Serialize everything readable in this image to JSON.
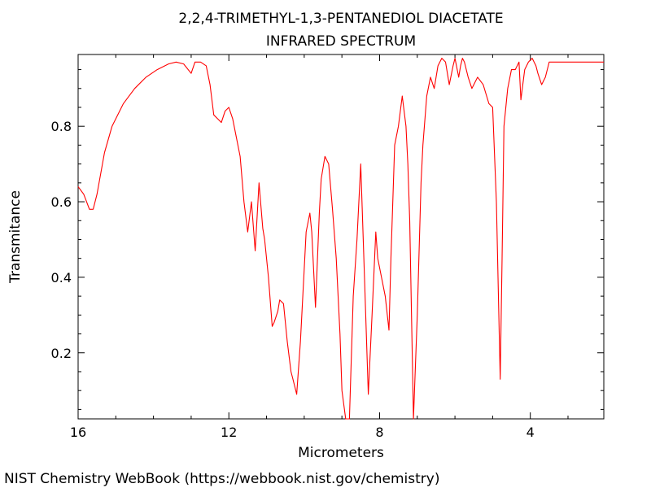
{
  "chart_data": {
    "type": "line",
    "title": "2,2,4-TRIMETHYL-1,3-PENTANEDIOL DIACETATE",
    "subtitle": "INFRARED SPECTRUM",
    "xlabel": "Micrometers",
    "ylabel": "Transmitance",
    "xlim": [
      16,
      2.05
    ],
    "ylim": [
      0.025,
      0.99
    ],
    "x_ticks": [
      16,
      12,
      8,
      4
    ],
    "x_tick_labels": [
      "16",
      "12",
      "8",
      "4"
    ],
    "y_ticks": [
      0.2,
      0.4,
      0.6,
      0.8
    ],
    "y_tick_labels": [
      "0.2",
      "0.4",
      "0.6",
      "0.8"
    ],
    "grid": false,
    "line_color": "#ff0000",
    "series": [
      {
        "x": [
          16.0,
          15.85,
          15.7,
          15.6,
          15.5,
          15.3,
          15.1,
          14.8,
          14.5,
          14.2,
          13.9,
          13.6,
          13.4,
          13.2,
          13.0,
          12.9,
          12.75,
          12.6,
          12.5,
          12.4,
          12.3,
          12.2,
          12.1,
          12.0,
          11.9,
          11.8,
          11.7,
          11.6,
          11.5,
          11.4,
          11.3,
          11.2,
          11.1,
          11.05,
          10.95,
          10.85,
          10.8,
          10.7,
          10.65,
          10.55,
          10.45,
          10.35,
          10.3,
          10.2,
          10.1,
          10.0,
          9.95,
          9.85,
          9.8,
          9.7,
          9.6,
          9.55,
          9.45,
          9.35,
          9.25,
          9.15,
          9.05,
          9.0,
          8.9,
          8.8,
          8.7,
          8.6,
          8.5,
          8.4,
          8.3,
          8.2,
          8.1,
          8.05,
          7.95,
          7.85,
          7.75,
          7.7,
          7.6,
          7.5,
          7.4,
          7.3,
          7.25,
          7.2,
          7.1,
          7.0,
          6.9,
          6.85,
          6.75,
          6.65,
          6.55,
          6.45,
          6.35,
          6.25,
          6.15,
          6.05,
          6.0,
          5.9,
          5.85,
          5.8,
          5.75,
          5.65,
          5.55,
          5.4,
          5.25,
          5.1,
          5.0,
          4.9,
          4.8,
          4.75,
          4.7,
          4.6,
          4.5,
          4.4,
          4.3,
          4.25,
          4.15,
          4.05,
          3.95,
          3.85,
          3.8,
          3.7,
          3.6,
          3.5,
          3.45,
          3.4,
          3.35,
          3.3,
          3.25,
          3.2,
          3.15,
          3.1,
          3.05,
          3.0,
          2.95,
          2.9,
          2.8,
          2.7,
          2.6,
          2.5,
          2.4,
          2.3,
          2.25,
          2.2,
          2.15,
          2.1,
          2.05
        ],
        "y": [
          0.64,
          0.62,
          0.58,
          0.58,
          0.62,
          0.73,
          0.8,
          0.86,
          0.9,
          0.93,
          0.95,
          0.965,
          0.97,
          0.965,
          0.94,
          0.97,
          0.97,
          0.96,
          0.91,
          0.83,
          0.82,
          0.81,
          0.84,
          0.85,
          0.82,
          0.77,
          0.72,
          0.6,
          0.52,
          0.6,
          0.47,
          0.65,
          0.53,
          0.5,
          0.4,
          0.27,
          0.28,
          0.31,
          0.34,
          0.33,
          0.23,
          0.15,
          0.13,
          0.09,
          0.23,
          0.42,
          0.52,
          0.57,
          0.52,
          0.32,
          0.57,
          0.66,
          0.72,
          0.7,
          0.58,
          0.45,
          0.25,
          0.1,
          0.02,
          0.02,
          0.35,
          0.5,
          0.7,
          0.4,
          0.09,
          0.3,
          0.52,
          0.45,
          0.4,
          0.35,
          0.26,
          0.45,
          0.75,
          0.8,
          0.88,
          0.8,
          0.7,
          0.55,
          0.025,
          0.3,
          0.65,
          0.75,
          0.88,
          0.93,
          0.9,
          0.96,
          0.98,
          0.97,
          0.91,
          0.96,
          0.98,
          0.93,
          0.96,
          0.98,
          0.97,
          0.93,
          0.9,
          0.93,
          0.91,
          0.86,
          0.85,
          0.6,
          0.13,
          0.45,
          0.8,
          0.9,
          0.95,
          0.95,
          0.97,
          0.87,
          0.95,
          0.97,
          0.98,
          0.96,
          0.94,
          0.91,
          0.93,
          0.97,
          0.97,
          0.97,
          0.97,
          0.97,
          0.97,
          0.97,
          0.97,
          0.97,
          0.97,
          0.97,
          0.97,
          0.97,
          0.97,
          0.97,
          0.97,
          0.97,
          0.97,
          0.97,
          0.97,
          0.97,
          0.97,
          0.97,
          0.97
        ]
      }
    ]
  },
  "footer": "NIST Chemistry WebBook (https://webbook.nist.gov/chemistry)"
}
